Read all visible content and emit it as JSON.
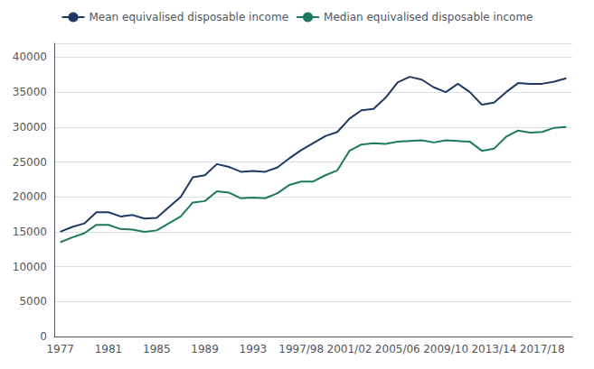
{
  "chart_data": {
    "type": "line",
    "categories": [
      "1977",
      null,
      null,
      null,
      "1981",
      null,
      null,
      null,
      "1985",
      null,
      null,
      null,
      "1989",
      null,
      null,
      null,
      "1993",
      null,
      null,
      null,
      "1997/98",
      null,
      null,
      null,
      "2001/02",
      null,
      null,
      null,
      "2005/06",
      null,
      null,
      null,
      "2009/10",
      null,
      null,
      null,
      "2013/14",
      null,
      null,
      null,
      "2017/18",
      null,
      null
    ],
    "series": [
      {
        "name": "Mean equivalised disposable income",
        "color": "#1f3864",
        "values": [
          15000,
          15700,
          16200,
          17800,
          17800,
          17200,
          17400,
          16900,
          17000,
          18500,
          20000,
          22800,
          23100,
          24700,
          24300,
          23600,
          23700,
          23600,
          24200,
          25500,
          26700,
          27700,
          28700,
          29300,
          31200,
          32400,
          32600,
          34200,
          36400,
          37200,
          36800,
          35700,
          35000,
          36200,
          35000,
          33200,
          33500,
          35000,
          36300,
          36200,
          36200,
          36500,
          37000
        ]
      },
      {
        "name": "Median equivalised disposable income",
        "color": "#1d7a5f",
        "values": [
          13500,
          14200,
          14800,
          16000,
          16000,
          15400,
          15300,
          15000,
          15200,
          16200,
          17200,
          19200,
          19400,
          20800,
          20600,
          19800,
          19900,
          19800,
          20500,
          21700,
          22200,
          22200,
          23100,
          23800,
          26600,
          27500,
          27700,
          27600,
          27900,
          28000,
          28100,
          27800,
          28100,
          28000,
          27900,
          26600,
          26900,
          28600,
          29500,
          29200,
          29300,
          29900,
          30000
        ]
      }
    ],
    "ylim": [
      0,
      42000
    ],
    "yticks": [
      0,
      5000,
      10000,
      15000,
      20000,
      25000,
      30000,
      35000,
      40000
    ],
    "grid": true,
    "legend": "top"
  }
}
